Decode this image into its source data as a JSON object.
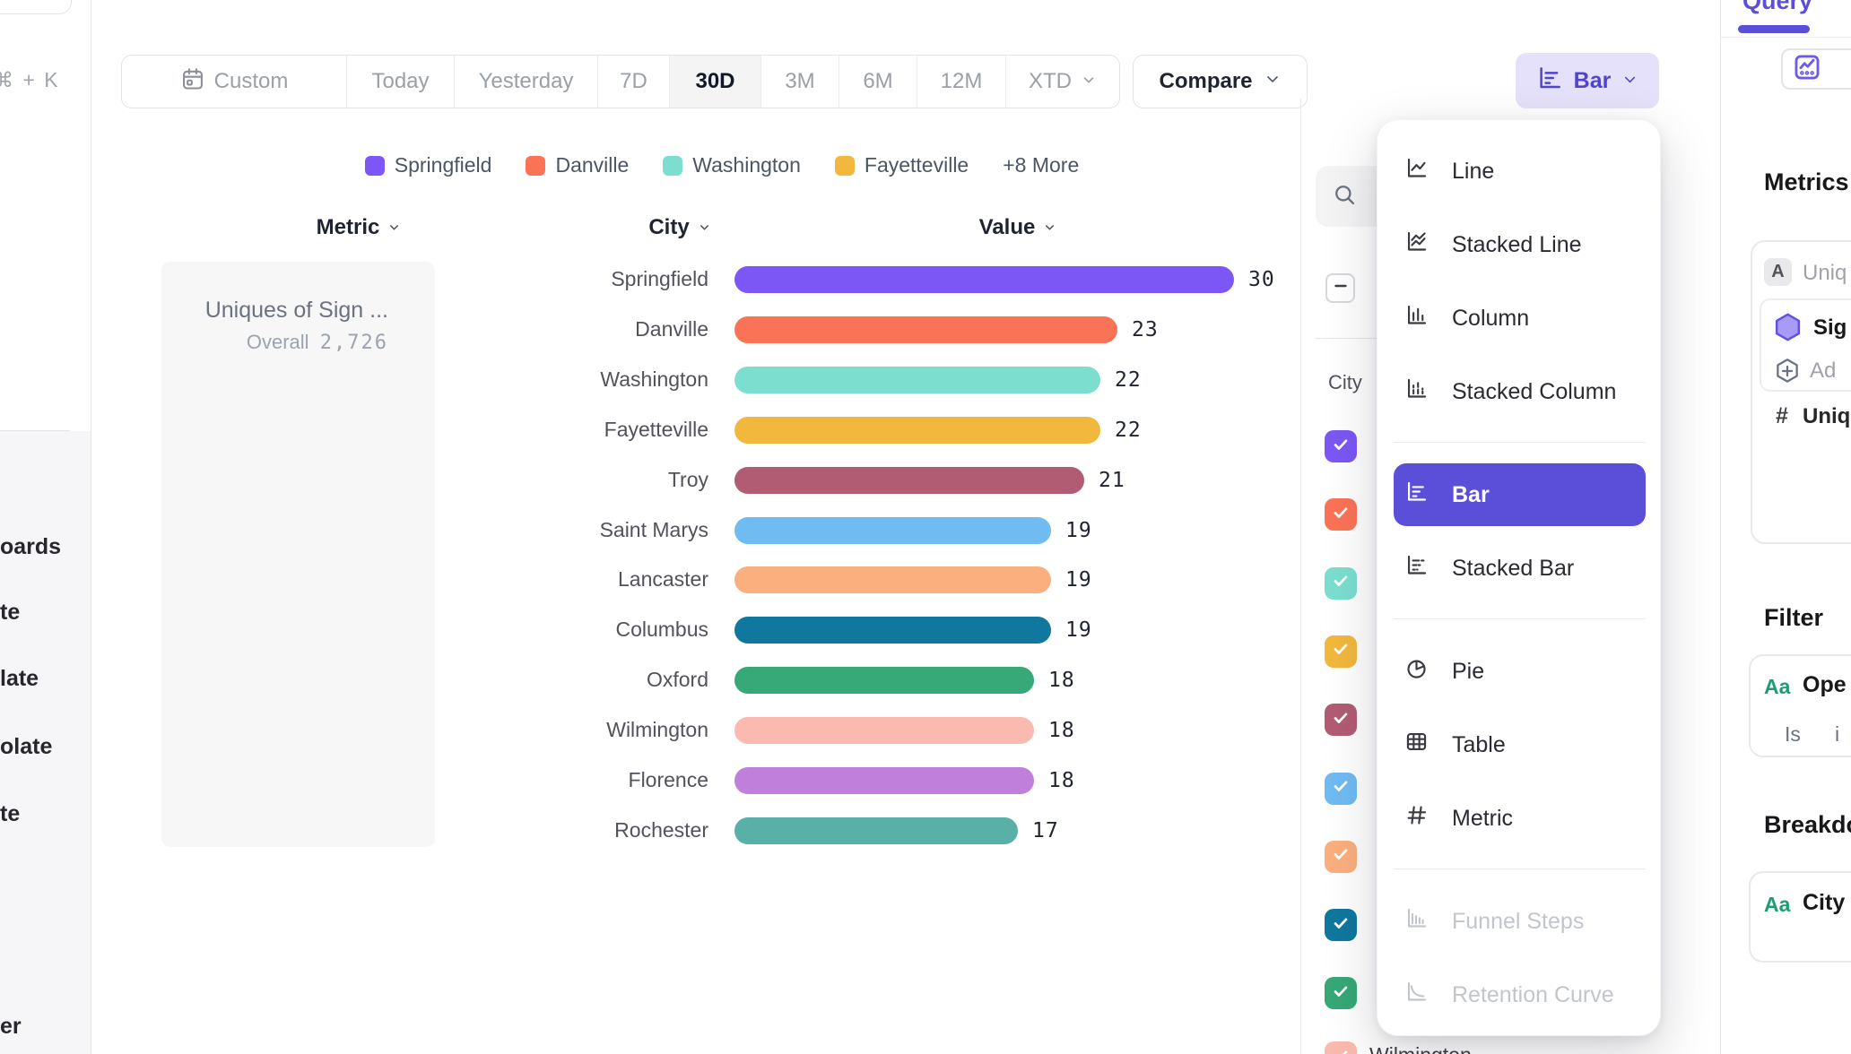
{
  "colors": {
    "accent": "#5B4FD9",
    "accent_light": "#E5E1FB",
    "green_badge": "#1E9E6E",
    "selected_range_bg": "#F4F4F5"
  },
  "sidebar": {
    "shortcut": "⌘ + K",
    "items": [
      "oards",
      "te",
      "late",
      "olate",
      "te",
      "er"
    ]
  },
  "toolbar": {
    "date_ranges": [
      {
        "label": "Custom",
        "icon": "calendar"
      },
      {
        "label": "Today"
      },
      {
        "label": "Yesterday"
      },
      {
        "label": "7D"
      },
      {
        "label": "30D"
      },
      {
        "label": "3M"
      },
      {
        "label": "6M"
      },
      {
        "label": "12M"
      },
      {
        "label": "XTD",
        "chevron": true
      }
    ],
    "selected_range": "30D",
    "compare_label": "Compare",
    "chart_type_button": {
      "label": "Bar",
      "icon": "bar"
    }
  },
  "legend": {
    "items": [
      {
        "label": "Springfield",
        "color": "#7C57F5"
      },
      {
        "label": "Danville",
        "color": "#FB7357"
      },
      {
        "label": "Washington",
        "color": "#7BDECE"
      },
      {
        "label": "Fayetteville",
        "color": "#F2B83E"
      }
    ],
    "more_label": "+8 More"
  },
  "chart_header": {
    "metric": "Metric",
    "city": "City",
    "value": "Value"
  },
  "metric_card": {
    "title": "Uniques of Sign ...",
    "overall_label": "Overall",
    "overall_value": "2,726"
  },
  "chart_data": {
    "type": "bar",
    "orientation": "horizontal",
    "title": "Uniques of Sign ...",
    "overall": 2726,
    "categories": [
      "Springfield",
      "Danville",
      "Washington",
      "Fayetteville",
      "Troy",
      "Saint Marys",
      "Lancaster",
      "Columbus",
      "Oxford",
      "Wilmington",
      "Florence",
      "Rochester"
    ],
    "values": [
      30,
      23,
      22,
      22,
      21,
      19,
      19,
      19,
      18,
      18,
      18,
      17
    ],
    "colors": [
      "#7C57F5",
      "#FB7357",
      "#7BDECE",
      "#F2B83E",
      "#B25C74",
      "#6FBBF2",
      "#FBAF7E",
      "#10779E",
      "#37A877",
      "#FBBAAF",
      "#C17FDC",
      "#58B0A6"
    ],
    "xlim": [
      0,
      30
    ],
    "grid": false,
    "legend_position": "top"
  },
  "city_panel": {
    "search_icon": "magnifier",
    "select_all_state": "indeterminate",
    "column_label": "City",
    "visible_checked_count": 9,
    "partial_row_label": "Wilmington"
  },
  "chart_type_menu": {
    "items": [
      {
        "label": "Line",
        "icon": "line"
      },
      {
        "label": "Stacked Line",
        "icon": "stacked-line"
      },
      {
        "label": "Column",
        "icon": "column"
      },
      {
        "label": "Stacked Column",
        "icon": "stacked-column"
      },
      {
        "divider": true
      },
      {
        "label": "Bar",
        "icon": "bar",
        "selected": true
      },
      {
        "label": "Stacked Bar",
        "icon": "stacked-bar"
      },
      {
        "divider": true
      },
      {
        "label": "Pie",
        "icon": "pie"
      },
      {
        "label": "Table",
        "icon": "table"
      },
      {
        "label": "Metric",
        "icon": "hash"
      },
      {
        "divider": true
      },
      {
        "label": "Funnel Steps",
        "icon": "funnel",
        "enabled": false
      },
      {
        "label": "Retention Curve",
        "icon": "retention",
        "enabled": false
      }
    ]
  },
  "query_panel": {
    "tab": "Query",
    "metrics_heading": "Metrics",
    "metric_group_badge": "A",
    "metric_group_label": "Uniq",
    "metric_name": "Sig",
    "add_label": "Ad",
    "formula_prefix": "#",
    "formula_label": "Uniqu",
    "filter_heading": "Filter",
    "field_badge": "Aa",
    "filter_field": "Ope",
    "filter_op": "Is",
    "filter_value": "i",
    "breakdown_heading": "Breakdo",
    "breakdown_field": "City"
  }
}
